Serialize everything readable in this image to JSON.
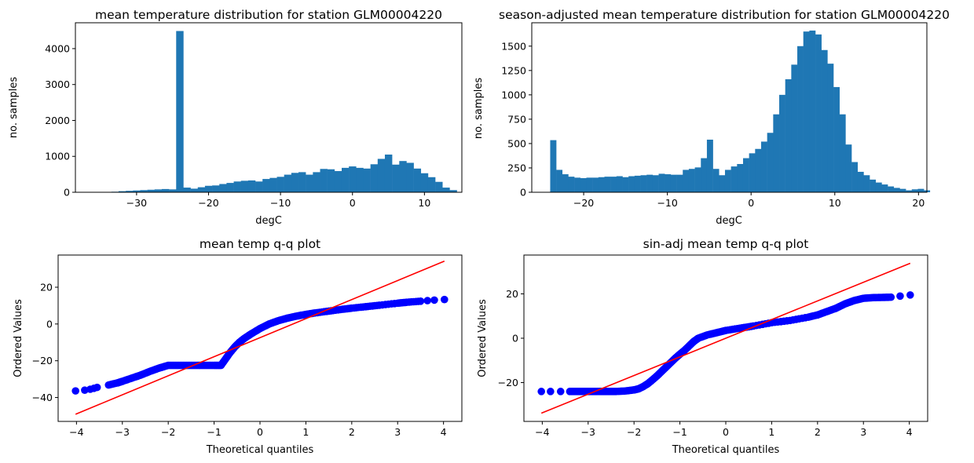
{
  "chart_data": [
    {
      "type": "bar",
      "title": "mean temperature distribution for station GLM00004220",
      "xlabel": "degC",
      "ylabel": "no. samples",
      "xlim": [
        -38.5,
        15.2
      ],
      "ylim": [
        0,
        4720
      ],
      "xticks": [
        -30,
        -20,
        -10,
        0,
        10
      ],
      "xtick_labels": [
        "−30",
        "−20",
        "−10",
        "0",
        "10"
      ],
      "yticks": [
        0,
        1000,
        2000,
        3000,
        4000
      ],
      "ytick_labels": [
        "0",
        "1000",
        "2000",
        "3000",
        "4000"
      ],
      "bin_start": -36.5,
      "bin_width": 1.0,
      "values": [
        5,
        5,
        10,
        15,
        30,
        40,
        50,
        60,
        70,
        80,
        90,
        80,
        4490,
        130,
        100,
        140,
        180,
        190,
        230,
        260,
        300,
        320,
        330,
        300,
        370,
        400,
        430,
        490,
        540,
        560,
        490,
        560,
        650,
        640,
        590,
        680,
        720,
        680,
        660,
        780,
        930,
        1050,
        770,
        870,
        820,
        660,
        530,
        420,
        290,
        130,
        60
      ],
      "color": "#1f77b4",
      "grid": false
    },
    {
      "type": "bar",
      "title": "season-adjusted mean temperature distribution for station GLM00004220",
      "xlabel": "degC",
      "ylabel": "no. samples",
      "xlim": [
        -26.2,
        21.0
      ],
      "ylim": [
        0,
        1740
      ],
      "xticks": [
        -20,
        -10,
        0,
        10,
        20
      ],
      "xtick_labels": [
        "−20",
        "−10",
        "0",
        "10",
        "20"
      ],
      "yticks": [
        0,
        250,
        500,
        750,
        1000,
        1250,
        1500
      ],
      "ytick_labels": [
        "0",
        "250",
        "500",
        "750",
        "1000",
        "1250",
        "1500"
      ],
      "bin_start": -24.0,
      "bin_width": 0.72,
      "values": [
        535,
        230,
        185,
        160,
        150,
        145,
        150,
        150,
        155,
        160,
        160,
        165,
        155,
        165,
        170,
        175,
        180,
        175,
        190,
        185,
        180,
        180,
        230,
        240,
        255,
        350,
        540,
        240,
        175,
        230,
        265,
        290,
        350,
        400,
        445,
        520,
        610,
        800,
        1000,
        1160,
        1310,
        1500,
        1650,
        1660,
        1620,
        1460,
        1320,
        1080,
        800,
        490,
        310,
        210,
        175,
        130,
        100,
        80,
        60,
        45,
        35,
        20,
        30,
        35,
        20
      ],
      "color": "#1f77b4",
      "grid": false
    },
    {
      "type": "scatter",
      "title": "mean temp q-q plot",
      "xlabel": "Theoretical quantiles",
      "ylabel": "Ordered Values",
      "xlim": [
        -4.4,
        4.4
      ],
      "ylim": [
        -53,
        37.5
      ],
      "xticks": [
        -4,
        -3,
        -2,
        -1,
        0,
        1,
        2,
        3,
        4
      ],
      "xtick_labels": [
        "−4",
        "−3",
        "−2",
        "−1",
        "0",
        "1",
        "2",
        "3",
        "4"
      ],
      "yticks": [
        -40,
        -20,
        0,
        20
      ],
      "ytick_labels": [
        "−40",
        "−20",
        "0",
        "20"
      ],
      "series": [
        {
          "kind": "points",
          "color": "#0000ff",
          "x": [
            -4.02,
            -3.82,
            -3.7,
            -3.62,
            -3.55,
            -3.3,
            -3.1,
            -3.0,
            -2.8,
            -2.6,
            -2.4,
            -2.2,
            -2.0,
            -1.8,
            -1.6,
            -1.4,
            -1.2,
            -1.0,
            -0.85,
            -0.75,
            -0.65,
            -0.55,
            -0.45,
            -0.35,
            -0.2,
            0.0,
            0.2,
            0.4,
            0.6,
            0.8,
            1.0,
            1.2,
            1.5,
            1.8,
            2.0,
            2.3,
            2.6,
            3.0,
            3.2,
            3.5,
            3.65,
            3.8,
            4.02
          ],
          "y": [
            -36.4,
            -36.0,
            -35.5,
            -35.0,
            -34.5,
            -33.2,
            -32.0,
            -31.2,
            -29.5,
            -27.8,
            -25.8,
            -24.0,
            -22.5,
            -22.5,
            -22.5,
            -22.5,
            -22.5,
            -22.5,
            -22.5,
            -19.0,
            -15.5,
            -12.5,
            -10.0,
            -8.0,
            -5.5,
            -2.5,
            0.0,
            1.8,
            3.2,
            4.3,
            5.2,
            6.0,
            7.0,
            8.0,
            8.6,
            9.4,
            10.2,
            11.3,
            11.8,
            12.4,
            12.7,
            13.0,
            13.3
          ]
        },
        {
          "kind": "line",
          "color": "#ff0000",
          "x": [
            -4.02,
            4.02
          ],
          "y": [
            -49.1,
            34.2
          ]
        }
      ]
    },
    {
      "type": "scatter",
      "title": "sin-adj mean temp q-q plot",
      "xlabel": "Theoretical quantiles",
      "ylabel": "Ordered Values",
      "xlim": [
        -4.4,
        4.4
      ],
      "ylim": [
        -37.5,
        37.5
      ],
      "xticks": [
        -4,
        -3,
        -2,
        -1,
        0,
        1,
        2,
        3,
        4
      ],
      "xtick_labels": [
        "−4",
        "−3",
        "−2",
        "−1",
        "0",
        "1",
        "2",
        "3",
        "4"
      ],
      "yticks": [
        -20,
        0,
        20
      ],
      "ytick_labels": [
        "−20",
        "0",
        "20"
      ],
      "series": [
        {
          "kind": "points",
          "color": "#0000ff",
          "x": [
            -4.02,
            -3.82,
            -3.6,
            -3.4,
            -3.2,
            -3.0,
            -2.8,
            -2.6,
            -2.4,
            -2.2,
            -2.0,
            -1.9,
            -1.8,
            -1.7,
            -1.6,
            -1.5,
            -1.4,
            -1.3,
            -1.2,
            -1.1,
            -1.0,
            -0.9,
            -0.8,
            -0.7,
            -0.6,
            -0.4,
            -0.2,
            0.0,
            0.3,
            0.6,
            1.0,
            1.4,
            1.8,
            2.0,
            2.2,
            2.4,
            2.6,
            2.8,
            3.0,
            3.2,
            3.4,
            3.6,
            3.8,
            4.02
          ],
          "y": [
            -24.0,
            -24.0,
            -24.0,
            -24.0,
            -24.0,
            -24.0,
            -24.0,
            -24.0,
            -24.0,
            -23.8,
            -23.3,
            -22.8,
            -21.8,
            -20.5,
            -18.8,
            -17.0,
            -15.0,
            -13.0,
            -11.0,
            -9.0,
            -7.2,
            -5.5,
            -3.5,
            -1.5,
            0.0,
            1.5,
            2.5,
            3.5,
            4.5,
            5.5,
            7.0,
            8.0,
            9.5,
            10.5,
            12.0,
            13.5,
            15.5,
            17.0,
            18.0,
            18.3,
            18.4,
            18.5,
            19.0,
            19.5
          ]
        },
        {
          "kind": "line",
          "color": "#ff0000",
          "x": [
            -4.02,
            4.02
          ],
          "y": [
            -33.8,
            33.8
          ]
        }
      ]
    }
  ]
}
